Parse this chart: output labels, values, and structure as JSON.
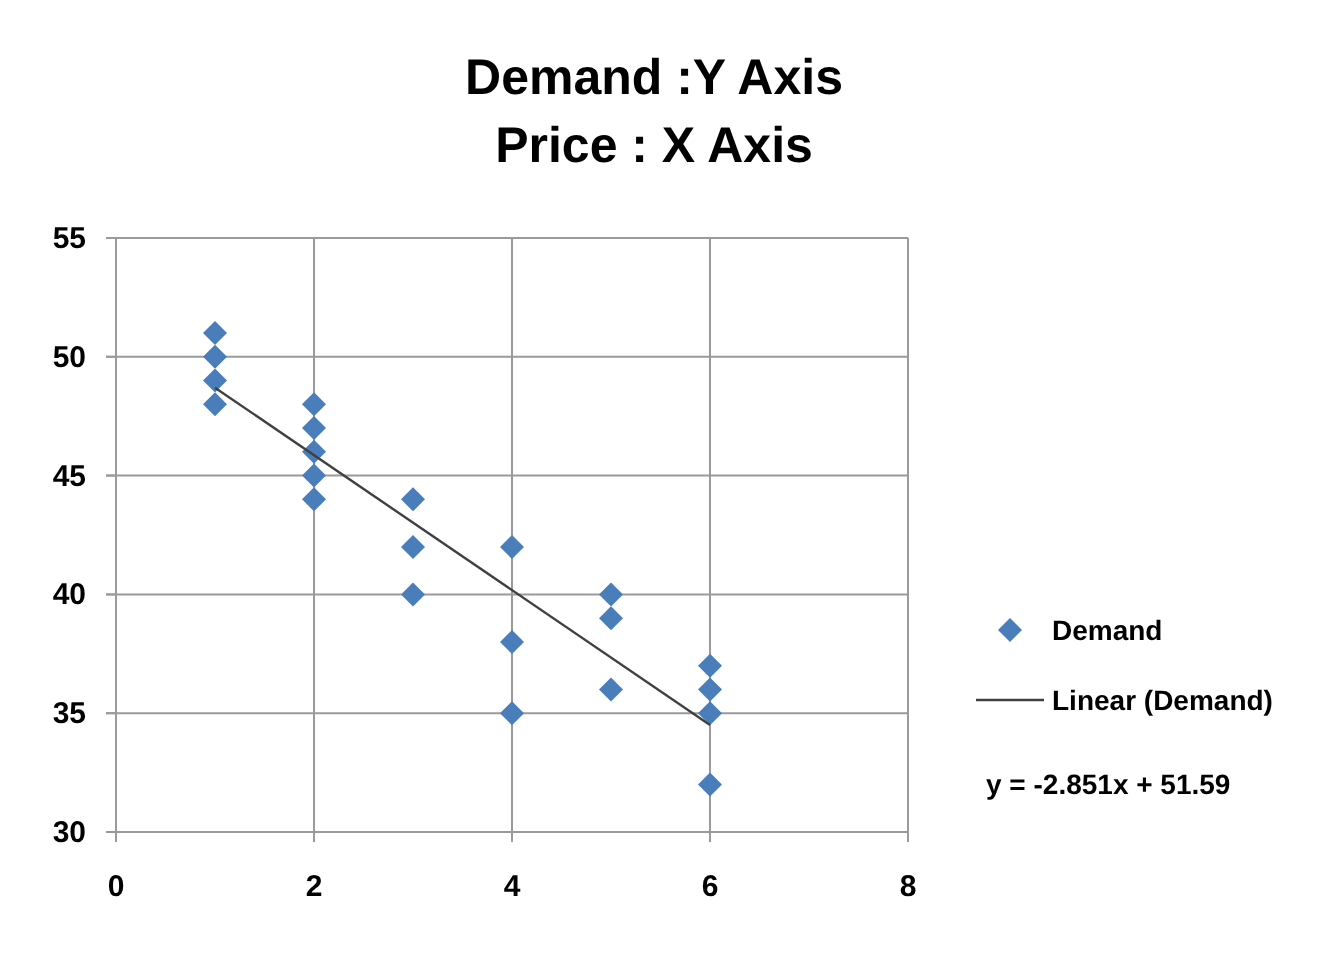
{
  "chart_data": {
    "type": "scatter",
    "title": "Demand :Y Axis",
    "subtitle": "Price : X Axis",
    "series": [
      {
        "name": "Demand",
        "color": "#4a7ebb",
        "x": [
          1,
          1,
          1,
          1,
          2,
          2,
          2,
          2,
          2,
          3,
          3,
          3,
          4,
          4,
          4,
          5,
          5,
          5,
          6,
          6,
          6,
          6
        ],
        "values": [
          51,
          50,
          49,
          48,
          48,
          47,
          46,
          45,
          44,
          44,
          42,
          40,
          42,
          38,
          35,
          40,
          39,
          36,
          37,
          36,
          35,
          32
        ]
      },
      {
        "name": "Linear (Demand)",
        "type": "line",
        "color": "#404040",
        "marker": "none",
        "x": [
          1,
          6
        ],
        "values": [
          48.7,
          34.5
        ]
      }
    ],
    "xlim": [
      0,
      8
    ],
    "xticks": [
      0,
      2,
      4,
      6,
      8
    ],
    "ylim": [
      30,
      55
    ],
    "yticks": [
      30,
      35,
      40,
      45,
      50,
      55
    ],
    "grid": true,
    "legend": "right",
    "marker": "diamond",
    "annotations": [
      "y = -2.851x + 51.59"
    ]
  }
}
